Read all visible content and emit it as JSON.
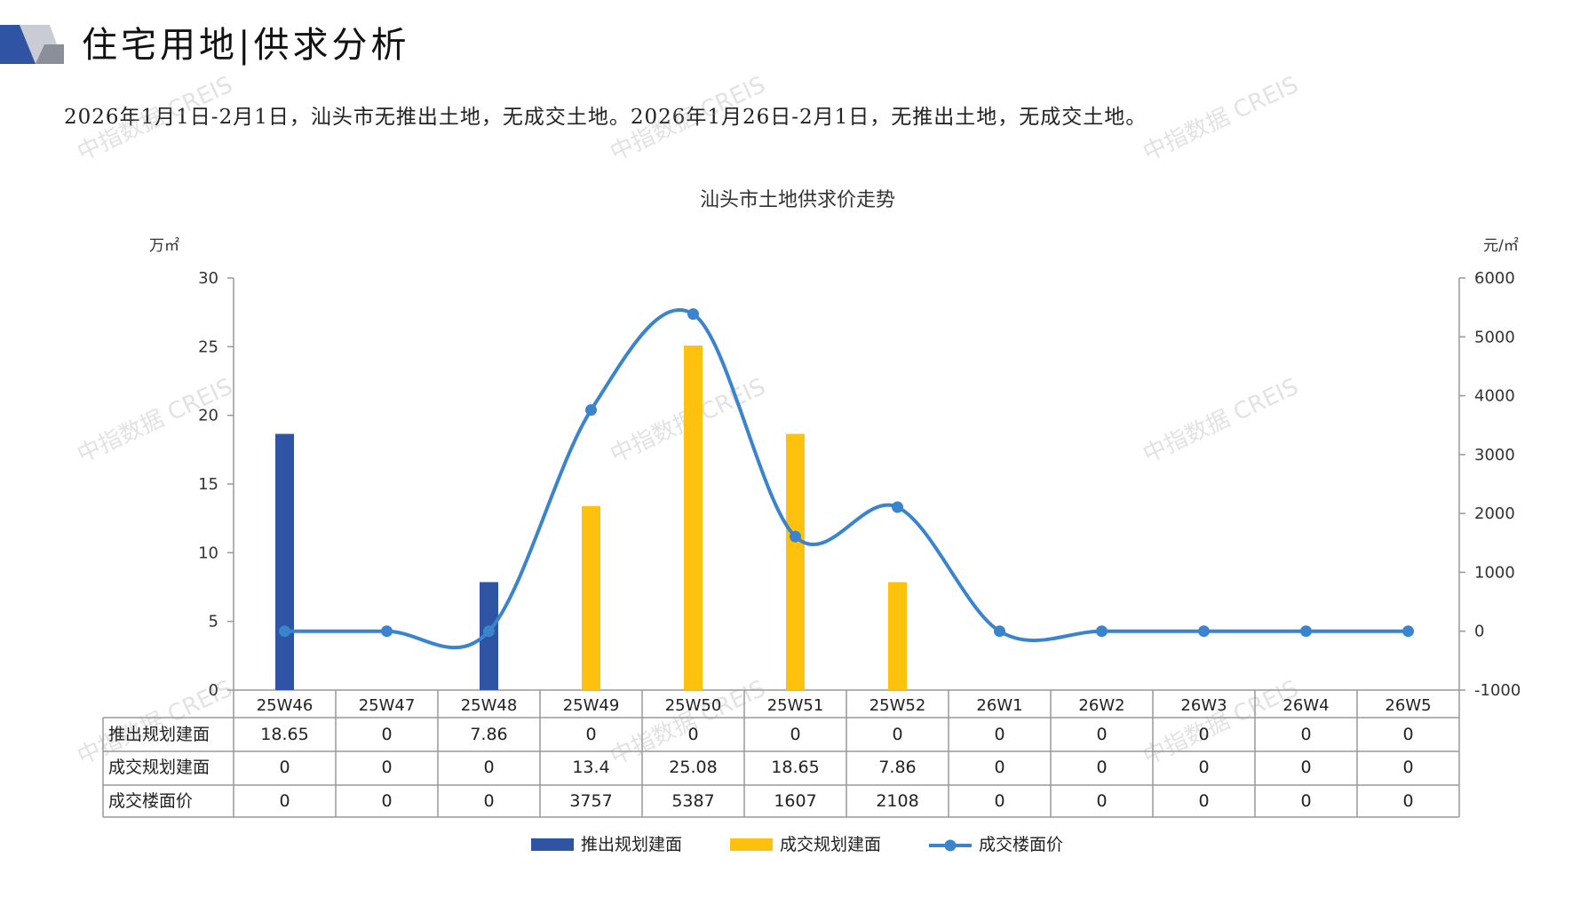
{
  "header": {
    "title": "住宅用地|供求分析",
    "summary": "2026年1月1日-2月1日，汕头市无推出土地，无成交土地。2026年1月26日-2月1日，无推出土地，无成交土地。"
  },
  "watermark": {
    "text": "中指数据 CREIS"
  },
  "colors": {
    "blue_bar": "#2f54a4",
    "yellow_bar": "#fdc10e",
    "line": "#3a84cf",
    "axis": "#999999"
  },
  "chart_data": {
    "type": "bar",
    "title": "汕头市土地供求价走势",
    "y_left_unit": "万㎡",
    "y_right_unit": "元/㎡",
    "y_left_lim": [
      0,
      30
    ],
    "y_left_ticks": [
      "0",
      "5",
      "10",
      "15",
      "20",
      "25",
      "30"
    ],
    "y_right_lim": [
      -1000,
      6000
    ],
    "y_right_ticks": [
      "-1000",
      "0",
      "1000",
      "2000",
      "3000",
      "4000",
      "5000",
      "6000"
    ],
    "categories": [
      "25W46",
      "25W47",
      "25W48",
      "25W49",
      "25W50",
      "25W51",
      "25W52",
      "26W1",
      "26W2",
      "26W3",
      "26W4",
      "26W5"
    ],
    "series": [
      {
        "name": "推出规划建面",
        "type": "bar",
        "axis": "left",
        "values": [
          18.65,
          0,
          7.86,
          0,
          0,
          0,
          0,
          0,
          0,
          0,
          0,
          0
        ],
        "labels": [
          "18.65",
          "0",
          "7.86",
          "0",
          "0",
          "0",
          "0",
          "0",
          "0",
          "0",
          "0",
          "0"
        ]
      },
      {
        "name": "成交规划建面",
        "type": "bar",
        "axis": "left",
        "values": [
          0,
          0,
          0,
          13.4,
          25.08,
          18.65,
          7.86,
          0,
          0,
          0,
          0,
          0
        ],
        "labels": [
          "0",
          "0",
          "0",
          "13.4",
          "25.08",
          "18.65",
          "7.86",
          "0",
          "0",
          "0",
          "0",
          "0"
        ]
      },
      {
        "name": "成交楼面价",
        "type": "line",
        "axis": "right",
        "values": [
          0,
          0,
          0,
          3757,
          5387,
          1607,
          2108,
          0,
          0,
          0,
          0,
          0
        ],
        "labels": [
          "0",
          "0",
          "0",
          "3757",
          "5387",
          "1607",
          "2108",
          "0",
          "0",
          "0",
          "0",
          "0"
        ]
      }
    ],
    "legend_position": "bottom",
    "data_table": true
  }
}
